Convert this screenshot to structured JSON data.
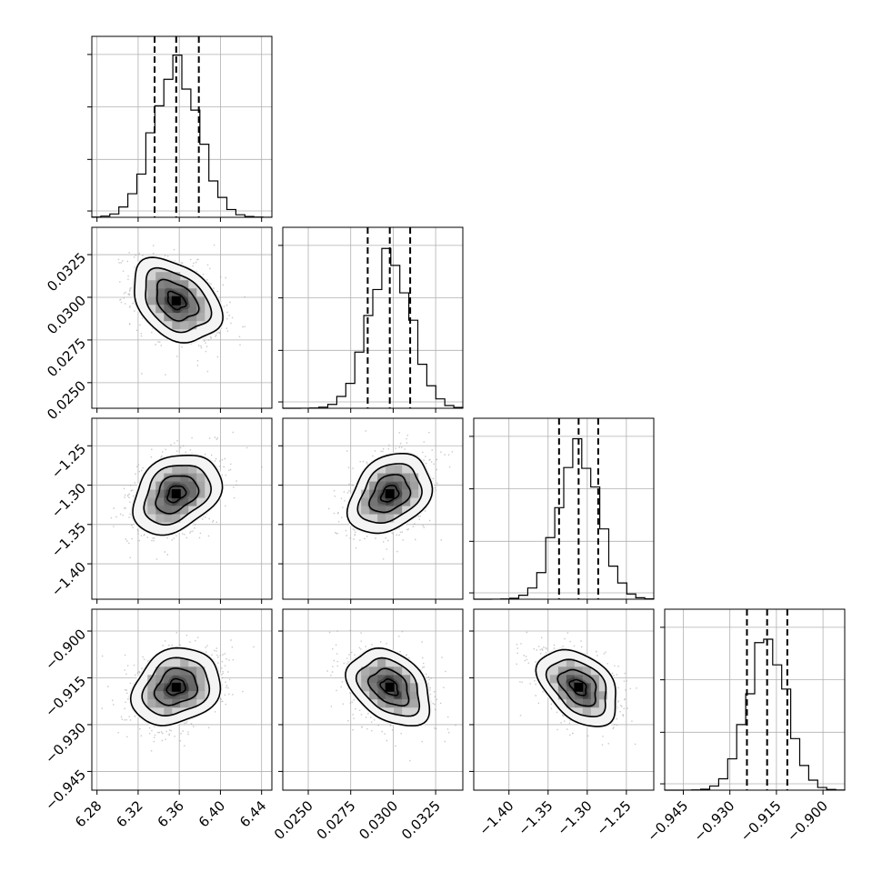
{
  "chart_data": {
    "type": "corner",
    "grid": true,
    "parameters": [
      {
        "index": 0,
        "range": [
          6.275,
          6.45
        ],
        "ticks": [
          6.28,
          6.32,
          6.36,
          6.4,
          6.44
        ],
        "tick_labels": [
          "6.28",
          "6.32",
          "6.36",
          "6.40",
          "6.44"
        ],
        "mean": 6.357,
        "sd": 0.022,
        "quantiles": [
          6.336,
          6.357,
          6.379
        ]
      },
      {
        "index": 1,
        "range": [
          0.0235,
          0.0341
        ],
        "ticks": [
          0.025,
          0.0275,
          0.03,
          0.0325
        ],
        "tick_labels": [
          "0.0250",
          "0.0275",
          "0.0300",
          "0.0325"
        ],
        "mean": 0.0298,
        "sd": 0.00125,
        "quantiles": [
          0.0285,
          0.0298,
          0.031
        ]
      },
      {
        "index": 2,
        "range": [
          -1.445,
          -1.215
        ],
        "ticks": [
          -1.4,
          -1.35,
          -1.3,
          -1.25
        ],
        "tick_labels": [
          "−1.40",
          "−1.35",
          "−1.30",
          "−1.25"
        ],
        "mean": -1.311,
        "sd": 0.026,
        "quantiles": [
          -1.336,
          -1.311,
          -1.286
        ]
      },
      {
        "index": 3,
        "range": [
          -0.951,
          -0.893
        ],
        "ticks": [
          -0.945,
          -0.93,
          -0.915,
          -0.9
        ],
        "tick_labels": [
          "−0.945",
          "−0.930",
          "−0.915",
          "−0.900"
        ],
        "mean": -0.918,
        "sd": 0.0063,
        "quantiles": [
          -0.9245,
          -0.918,
          -0.9115
        ]
      }
    ],
    "correlations": [
      {
        "pair": [
          0,
          1
        ],
        "rho": -0.35
      },
      {
        "pair": [
          0,
          2
        ],
        "rho": 0.3
      },
      {
        "pair": [
          1,
          2
        ],
        "rho": 0.3
      },
      {
        "pair": [
          0,
          3
        ],
        "rho": 0.2
      },
      {
        "pair": [
          1,
          3
        ],
        "rho": -0.35
      },
      {
        "pair": [
          2,
          3
        ],
        "rho": -0.4
      }
    ],
    "histogram_bins": 20,
    "contour_levels": [
      0.5,
      1.0,
      1.5,
      2.0
    ],
    "scatter_color": "#9a9a9a"
  }
}
